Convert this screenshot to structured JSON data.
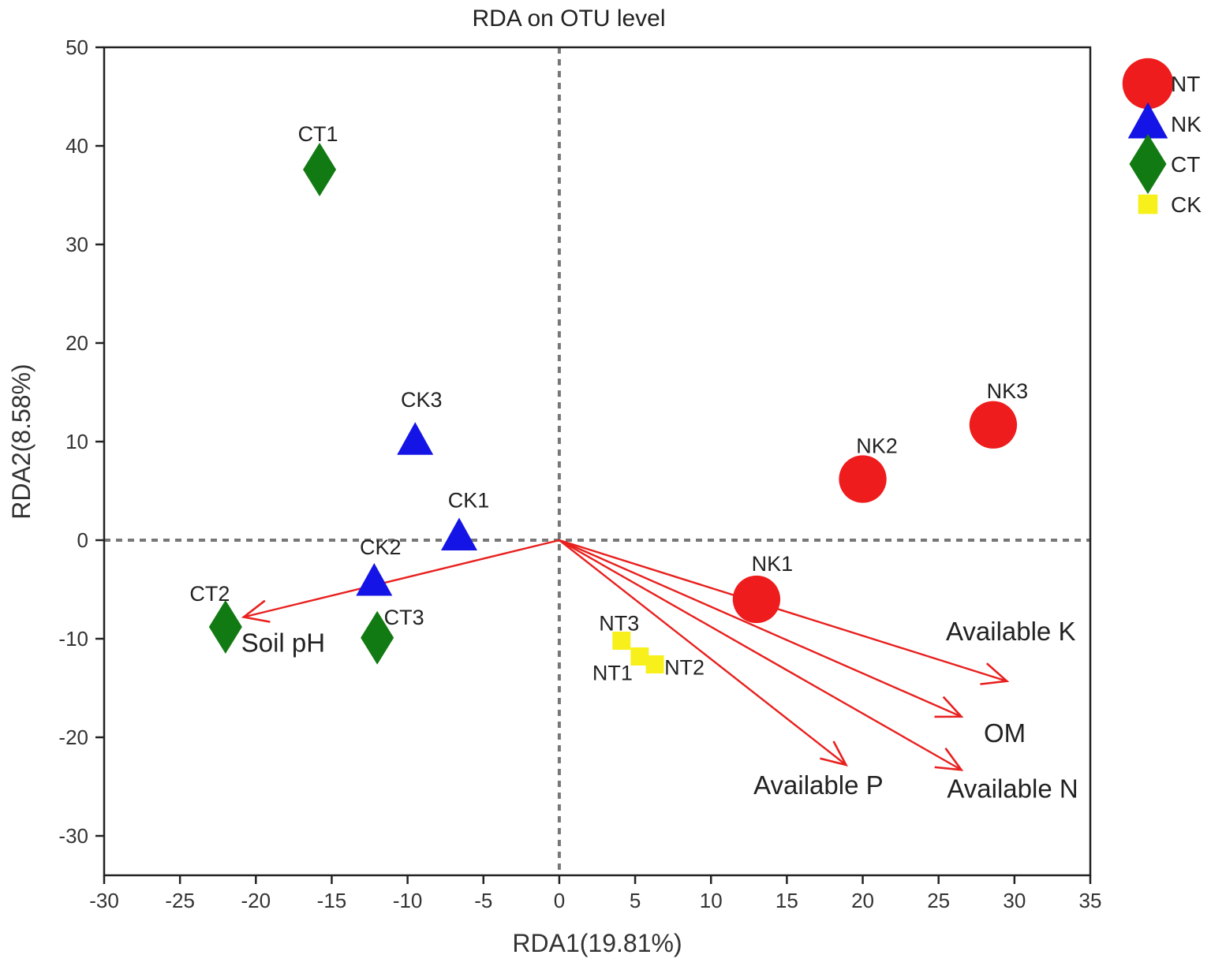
{
  "chart_data": {
    "type": "scatter",
    "title": "RDA on OTU level",
    "xlabel": "RDA1(19.81%)",
    "ylabel": "RDA2(8.58%)",
    "xlim": [
      -30,
      35
    ],
    "ylim": [
      -34,
      50
    ],
    "xticks": [
      -30,
      -25,
      -20,
      -15,
      -10,
      -5,
      0,
      5,
      10,
      15,
      20,
      25,
      30,
      35
    ],
    "yticks": [
      -30,
      -20,
      -10,
      0,
      10,
      20,
      30,
      40,
      50
    ],
    "legend_position": "right-top",
    "groups": [
      {
        "name": "NT",
        "marker": "circle",
        "color": "#ee1c1c"
      },
      {
        "name": "NK",
        "marker": "triangle",
        "color": "#1414e6"
      },
      {
        "name": "CT",
        "marker": "diamond",
        "color": "#127a12"
      },
      {
        "name": "CK",
        "marker": "square",
        "color": "#f7f01a"
      }
    ],
    "points": [
      {
        "label": "NK1",
        "group": "NT",
        "x": 13.0,
        "y": -6.0
      },
      {
        "label": "NK2",
        "group": "NT",
        "x": 20.0,
        "y": 6.2
      },
      {
        "label": "NK3",
        "group": "NT",
        "x": 28.6,
        "y": 11.7
      },
      {
        "label": "CK1",
        "group": "NK",
        "x": -6.6,
        "y": 0.3
      },
      {
        "label": "CK2",
        "group": "NK",
        "x": -12.2,
        "y": -4.3
      },
      {
        "label": "CK3",
        "group": "NK",
        "x": -9.5,
        "y": 10.0
      },
      {
        "label": "CT1",
        "group": "CT",
        "x": -15.8,
        "y": 37.6
      },
      {
        "label": "CT2",
        "group": "CT",
        "x": -22.0,
        "y": -8.8
      },
      {
        "label": "CT3",
        "group": "CT",
        "x": -12.0,
        "y": -9.9
      },
      {
        "label": "NT1",
        "group": "CK",
        "x": 5.3,
        "y": -11.8
      },
      {
        "label": "NT2",
        "group": "CK",
        "x": 6.3,
        "y": -12.6
      },
      {
        "label": "NT3",
        "group": "CK",
        "x": 4.1,
        "y": -10.2
      }
    ],
    "env_vectors": [
      {
        "label": "Soil pH",
        "x": -20.8,
        "y": -7.8
      },
      {
        "label": "Available K",
        "x": 29.5,
        "y": -14.3
      },
      {
        "label": "OM",
        "x": 26.5,
        "y": -17.9
      },
      {
        "label": "Available N",
        "x": 26.5,
        "y": -23.3
      },
      {
        "label": "Available P",
        "x": 18.9,
        "y": -22.8
      }
    ]
  }
}
